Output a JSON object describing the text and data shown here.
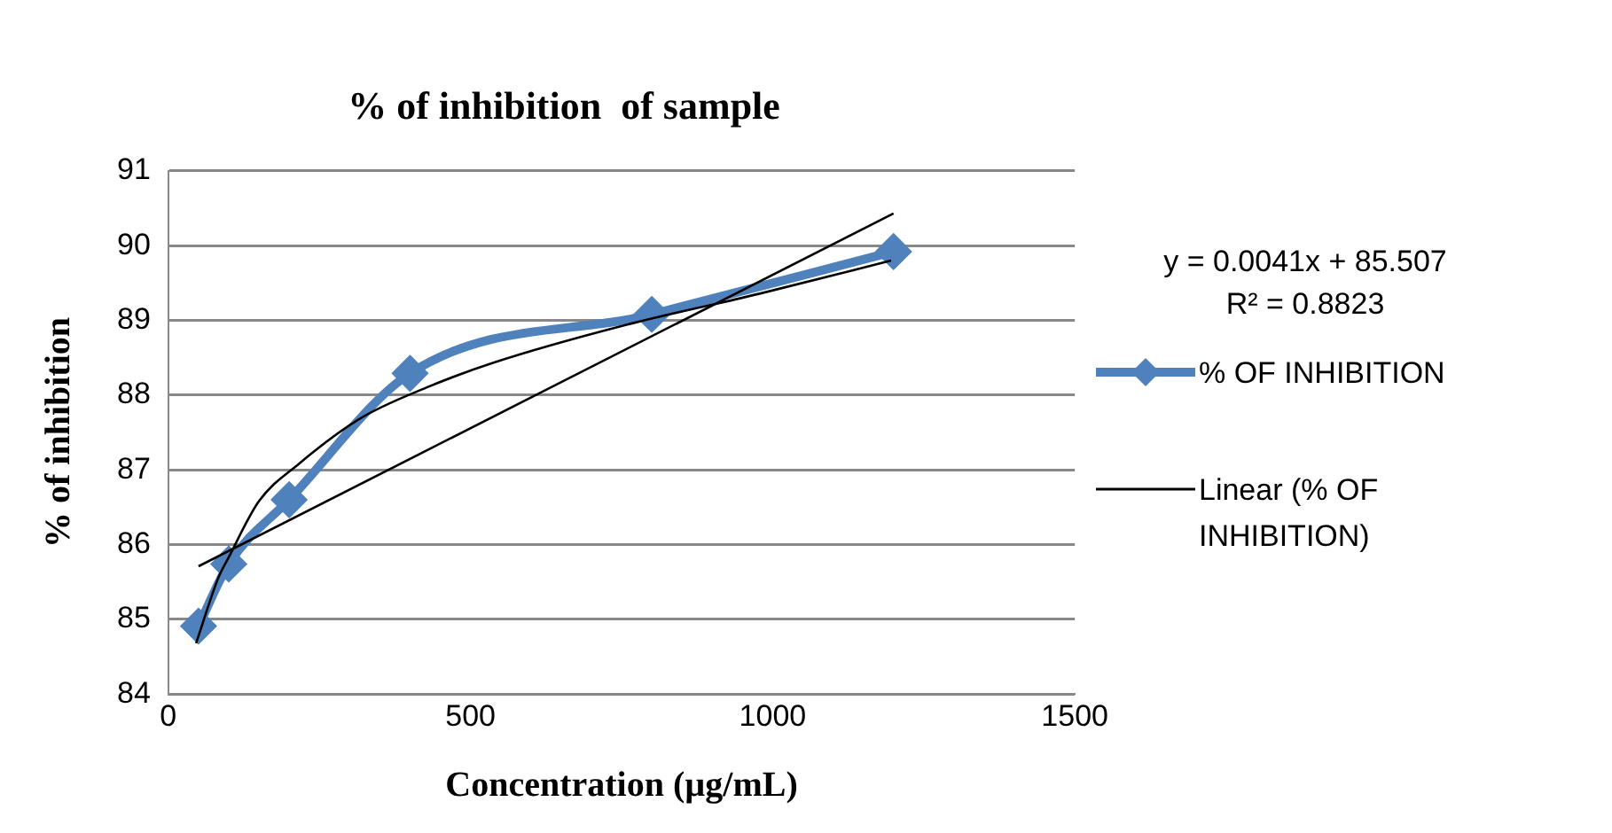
{
  "chart_data": {
    "type": "line",
    "title": "% of inhibition  of sample",
    "xlabel": "Concentration (µg/mL)",
    "ylabel": "% of inhibition",
    "x": [
      50,
      100,
      200,
      400,
      800,
      1200
    ],
    "series": [
      {
        "name": "% OF INHIBITION",
        "color": "#4f81bd",
        "values": [
          84.91,
          85.74,
          86.6,
          88.29,
          89.08,
          89.92
        ],
        "line_style": "solid"
      },
      {
        "type": "line",
        "color": "#000000",
        "x": [
          46,
          83,
          100,
          150,
          216,
          316,
          427,
          537,
          758,
          980,
          1196
        ],
        "values": [
          84.68,
          85.56,
          85.83,
          86.58,
          87.08,
          87.68,
          88.1,
          88.43,
          88.94,
          89.36,
          89.8
        ],
        "marker": "none",
        "line_style": "solid"
      },
      {
        "type": "line",
        "name": "Linear (% OF INHIBITION)",
        "color": "#000000",
        "x": [
          50,
          1200
        ],
        "values": [
          85.71,
          90.43
        ],
        "marker": "none",
        "line_style": "solid"
      }
    ],
    "xlim": [
      0,
      1500
    ],
    "xticks": [
      0,
      500,
      1000,
      1500
    ],
    "ylim": [
      84,
      91
    ],
    "yticks": [
      84,
      85,
      86,
      87,
      88,
      89,
      90,
      91
    ],
    "grid": "y",
    "legend": "right",
    "marker": "diamond",
    "annotations": [
      "y = 0.0041x + 85.507",
      "R² = 0.8823"
    ]
  }
}
